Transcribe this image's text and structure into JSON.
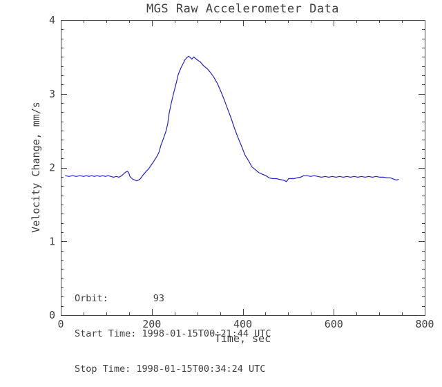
{
  "chart_data": {
    "type": "line",
    "title": "MGS Raw Accelerometer Data",
    "xlabel": "Time, sec",
    "ylabel": "Velocity Change, mm/s",
    "xlim": [
      0,
      800
    ],
    "ylim": [
      0,
      4
    ],
    "x_major_ticks": [
      0,
      200,
      400,
      600,
      800
    ],
    "x_minor_step": 50,
    "y_major_ticks": [
      0,
      1,
      2,
      3,
      4
    ],
    "y_minor_step": 0.125,
    "grid": false,
    "legend": null,
    "line_color": "#2222cc",
    "axis_color": "#404040",
    "background_color": "#ffffff",
    "series": [
      {
        "name": "velocity_change_mm_per_s",
        "points": [
          [
            10,
            1.89
          ],
          [
            18,
            1.88
          ],
          [
            26,
            1.89
          ],
          [
            34,
            1.88
          ],
          [
            42,
            1.89
          ],
          [
            50,
            1.88
          ],
          [
            56,
            1.89
          ],
          [
            62,
            1.88
          ],
          [
            68,
            1.89
          ],
          [
            74,
            1.88
          ],
          [
            80,
            1.89
          ],
          [
            86,
            1.88
          ],
          [
            92,
            1.89
          ],
          [
            98,
            1.88
          ],
          [
            104,
            1.89
          ],
          [
            110,
            1.88
          ],
          [
            116,
            1.87
          ],
          [
            122,
            1.88
          ],
          [
            128,
            1.87
          ],
          [
            134,
            1.89
          ],
          [
            139,
            1.92
          ],
          [
            143,
            1.94
          ],
          [
            147,
            1.95
          ],
          [
            150,
            1.92
          ],
          [
            152,
            1.88
          ],
          [
            155,
            1.86
          ],
          [
            159,
            1.84
          ],
          [
            163,
            1.83
          ],
          [
            167,
            1.82
          ],
          [
            171,
            1.83
          ],
          [
            175,
            1.85
          ],
          [
            181,
            1.9
          ],
          [
            188,
            1.95
          ],
          [
            193,
            1.98
          ],
          [
            197,
            2.02
          ],
          [
            203,
            2.07
          ],
          [
            208,
            2.12
          ],
          [
            212,
            2.16
          ],
          [
            216,
            2.21
          ],
          [
            220,
            2.3
          ],
          [
            226,
            2.4
          ],
          [
            231,
            2.49
          ],
          [
            235,
            2.59
          ],
          [
            238,
            2.73
          ],
          [
            243,
            2.88
          ],
          [
            249,
            3.03
          ],
          [
            254,
            3.15
          ],
          [
            258,
            3.26
          ],
          [
            264,
            3.35
          ],
          [
            269,
            3.41
          ],
          [
            273,
            3.46
          ],
          [
            277,
            3.49
          ],
          [
            281,
            3.51
          ],
          [
            285,
            3.49
          ],
          [
            288,
            3.47
          ],
          [
            292,
            3.5
          ],
          [
            296,
            3.48
          ],
          [
            300,
            3.46
          ],
          [
            307,
            3.43
          ],
          [
            314,
            3.38
          ],
          [
            322,
            3.34
          ],
          [
            329,
            3.29
          ],
          [
            337,
            3.22
          ],
          [
            345,
            3.13
          ],
          [
            352,
            3.03
          ],
          [
            360,
            2.91
          ],
          [
            367,
            2.79
          ],
          [
            375,
            2.66
          ],
          [
            382,
            2.53
          ],
          [
            390,
            2.4
          ],
          [
            398,
            2.28
          ],
          [
            405,
            2.17
          ],
          [
            413,
            2.09
          ],
          [
            420,
            2.01
          ],
          [
            428,
            1.97
          ],
          [
            436,
            1.93
          ],
          [
            443,
            1.91
          ],
          [
            451,
            1.89
          ],
          [
            458,
            1.86
          ],
          [
            466,
            1.85
          ],
          [
            474,
            1.85
          ],
          [
            481,
            1.84
          ],
          [
            489,
            1.83
          ],
          [
            496,
            1.81
          ],
          [
            501,
            1.85
          ],
          [
            512,
            1.85
          ],
          [
            519,
            1.86
          ],
          [
            527,
            1.87
          ],
          [
            534,
            1.89
          ],
          [
            542,
            1.89
          ],
          [
            549,
            1.88
          ],
          [
            557,
            1.89
          ],
          [
            565,
            1.88
          ],
          [
            573,
            1.87
          ],
          [
            581,
            1.88
          ],
          [
            589,
            1.87
          ],
          [
            597,
            1.88
          ],
          [
            605,
            1.87
          ],
          [
            613,
            1.88
          ],
          [
            621,
            1.87
          ],
          [
            629,
            1.88
          ],
          [
            637,
            1.87
          ],
          [
            645,
            1.88
          ],
          [
            653,
            1.87
          ],
          [
            661,
            1.88
          ],
          [
            669,
            1.87
          ],
          [
            677,
            1.88
          ],
          [
            685,
            1.87
          ],
          [
            693,
            1.88
          ],
          [
            701,
            1.87
          ],
          [
            709,
            1.87
          ],
          [
            717,
            1.86
          ],
          [
            725,
            1.86
          ],
          [
            733,
            1.84
          ],
          [
            738,
            1.83
          ],
          [
            742,
            1.84
          ]
        ]
      }
    ],
    "annotations": {
      "orbit_line": "Orbit:        93",
      "start_time_line": "Start Time: 1998-01-15T00:21:44 UTC",
      "stop_time_line": "Stop Time: 1998-01-15T00:34:24 UTC"
    }
  }
}
